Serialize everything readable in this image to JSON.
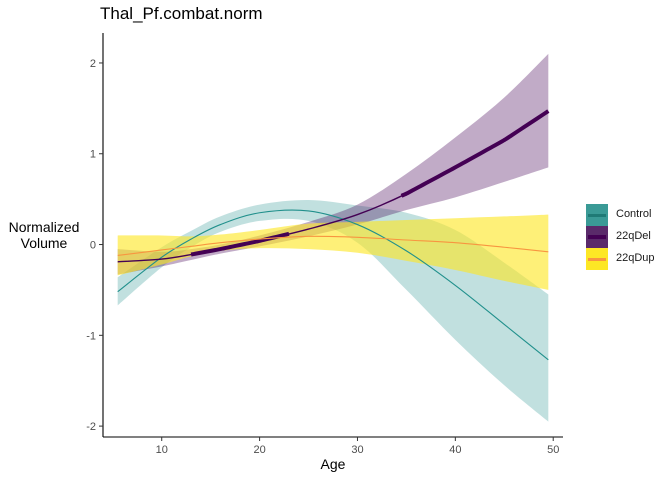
{
  "chart_data": {
    "type": "line",
    "title": "Thal_Pf.combat.norm",
    "xlabel": "Age",
    "ylabel_line1": "Normalized",
    "ylabel_line2": "Volume",
    "xlim": [
      4,
      51
    ],
    "ylim": [
      -2.12,
      2.33
    ],
    "x_ticks": [
      10,
      20,
      30,
      40,
      50
    ],
    "y_ticks": [
      -2,
      -1,
      0,
      1,
      2
    ],
    "x_tick_labels": [
      "10",
      "20",
      "30",
      "40",
      "50"
    ],
    "y_tick_labels": [
      "-2",
      "-1",
      "0",
      "1",
      "2"
    ],
    "grid": false,
    "legend_position": "right",
    "x": [
      5.5,
      10,
      13,
      16,
      20,
      25,
      30,
      35,
      40,
      45,
      49.5
    ],
    "series": [
      {
        "name": "Control",
        "color": "#21908C",
        "fill": "rgba(33,144,140,0.28)",
        "line_width": "thin",
        "values": [
          -0.52,
          -0.14,
          0.06,
          0.22,
          0.35,
          0.37,
          0.22,
          -0.07,
          -0.45,
          -0.88,
          -1.27
        ],
        "lower": [
          -0.67,
          -0.25,
          -0.03,
          0.14,
          0.26,
          0.26,
          0.02,
          -0.5,
          -1.05,
          -1.55,
          -1.95
        ],
        "upper": [
          -0.36,
          -0.03,
          0.15,
          0.31,
          0.44,
          0.49,
          0.43,
          0.35,
          0.16,
          -0.2,
          -0.55
        ]
      },
      {
        "name": "22qDel",
        "color": "#440154",
        "fill": "rgba(68,1,84,0.33)",
        "line_width": "thick",
        "thick_ranges": [
          [
            13,
            23
          ],
          [
            34.5,
            49.5
          ]
        ],
        "values": [
          -0.19,
          -0.16,
          -0.11,
          -0.05,
          0.04,
          0.17,
          0.33,
          0.56,
          0.85,
          1.15,
          1.47
        ],
        "lower": [
          -0.33,
          -0.24,
          -0.17,
          -0.1,
          -0.02,
          0.09,
          0.22,
          0.38,
          0.52,
          0.69,
          0.85
        ],
        "upper": [
          -0.05,
          -0.08,
          -0.05,
          0.0,
          0.1,
          0.25,
          0.44,
          0.78,
          1.18,
          1.62,
          2.1
        ]
      },
      {
        "name": "22qDup",
        "color": "#FDE725",
        "line_color": "#F89540",
        "fill": "rgba(253,231,37,0.62)",
        "line_width": "thin",
        "values": [
          -0.12,
          -0.06,
          -0.02,
          0.02,
          0.06,
          0.09,
          0.08,
          0.05,
          0.02,
          -0.03,
          -0.08
        ],
        "lower": [
          -0.34,
          -0.22,
          -0.13,
          -0.07,
          -0.04,
          -0.05,
          -0.09,
          -0.18,
          -0.28,
          -0.4,
          -0.5
        ],
        "upper": [
          0.1,
          0.1,
          0.09,
          0.11,
          0.16,
          0.23,
          0.25,
          0.27,
          0.29,
          0.31,
          0.33
        ]
      }
    ]
  }
}
